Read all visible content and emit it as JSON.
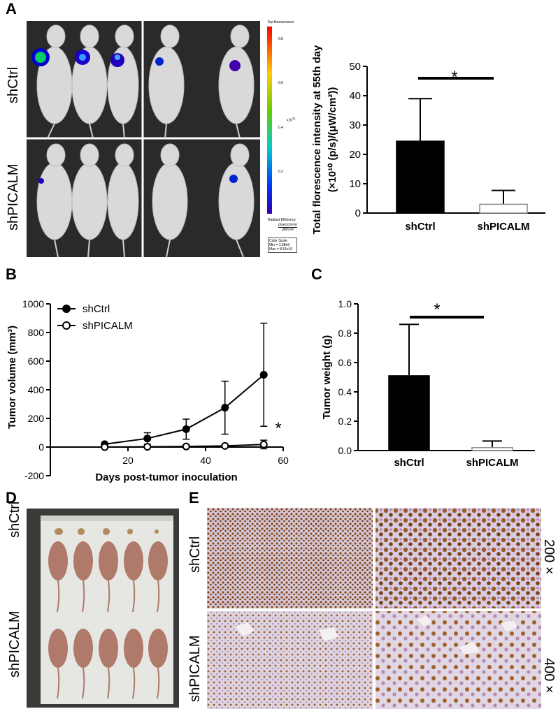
{
  "panels": {
    "A": {
      "letter": "A",
      "row_labels": [
        "shCtrl",
        "shPICALM"
      ],
      "colorbar": {
        "title": "Epi-fluorescence",
        "ticks": [
          "0.8",
          "0.6",
          "0.4",
          "0.2"
        ],
        "exponent": "x10",
        "exponent_power": "11",
        "units_title": "Radiant Efficiency",
        "units_num": "p/sec/cm²/sr",
        "units_den": "μW/cm²",
        "scale_title": "Color Scale",
        "scale_min": "Min = 1.98e9",
        "scale_max": "Max = 8.51e10"
      }
    },
    "B": {
      "letter": "B"
    },
    "C": {
      "letter": "C"
    },
    "D": {
      "letter": "D",
      "row_labels": [
        "shCtrl",
        "shPICALM"
      ]
    },
    "E": {
      "letter": "E",
      "row_labels": [
        "shCtrl",
        "shPICALM"
      ],
      "mag_labels": [
        "200 ×",
        "400 ×"
      ]
    }
  },
  "colors": {
    "black": "#000000",
    "white_bar": "#ffffff",
    "photo_bg": "#2a2a2a",
    "ihc_bg": "#d8cfe0",
    "ihc_nuclei": "#8a4a1c"
  },
  "chart_data": [
    {
      "id": "A",
      "type": "bar",
      "categories": [
        "shCtrl",
        "shPICALM"
      ],
      "values": [
        24.5,
        3
      ],
      "errors": [
        14.5,
        4.7
      ],
      "ylabel_line1": "Total florescence intensity at 55th day",
      "ylabel_line2": "(×10¹⁰ (p/s)/(μW/cm²))",
      "ylim": [
        0,
        50
      ],
      "yticks": [
        "0",
        "10",
        "20",
        "30",
        "40",
        "50"
      ],
      "significance": "*",
      "bar_fills": [
        "#000000",
        "#ffffff"
      ]
    },
    {
      "id": "B",
      "type": "line",
      "xlabel": "Days post-tumor inoculation",
      "ylabel": "Tumor volume (mm³)",
      "xlim": [
        0,
        60
      ],
      "ylim": [
        -200,
        1000
      ],
      "xticks": [
        "20",
        "40",
        "60"
      ],
      "yticks": [
        "-200",
        "0",
        "200",
        "400",
        "600",
        "800",
        "1000"
      ],
      "series": [
        {
          "name": "shCtrl",
          "x": [
            14,
            25,
            35,
            45,
            55
          ],
          "y": [
            20,
            60,
            125,
            275,
            505
          ],
          "err": [
            8,
            40,
            70,
            185,
            360
          ],
          "marker": "filled"
        },
        {
          "name": "shPICALM",
          "x": [
            14,
            25,
            35,
            45,
            55
          ],
          "y": [
            0,
            2,
            4,
            8,
            18
          ],
          "err": [
            3,
            4,
            6,
            10,
            30
          ],
          "marker": "open"
        }
      ],
      "significance": "*",
      "legend_position": "top-left"
    },
    {
      "id": "C",
      "type": "bar",
      "categories": [
        "shCtrl",
        "shPICALM"
      ],
      "values": [
        0.51,
        0.02
      ],
      "errors": [
        0.35,
        0.045
      ],
      "ylabel": "Tumor weight (g)",
      "ylim": [
        0,
        1.0
      ],
      "yticks": [
        "0.0",
        "0.2",
        "0.4",
        "0.6",
        "0.8",
        "1.0"
      ],
      "significance": "*",
      "bar_fills": [
        "#000000",
        "#ffffff"
      ]
    }
  ]
}
